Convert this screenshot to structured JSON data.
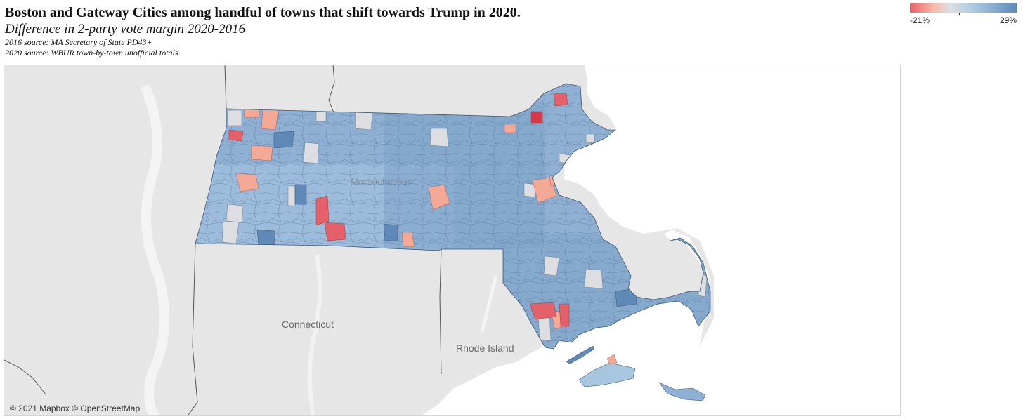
{
  "header": {
    "title": "Boston and Gateway Cities among handful of towns that shift towards Trump in 2020.",
    "subtitle": "Difference in 2-party vote margin 2020-2016",
    "source_2016": "2016 source: MA Secretary of State PD43+",
    "source_2020": "2020 source: WBUR town-by-town unofficial totals"
  },
  "legend": {
    "min_label": "-21%",
    "max_label": "29%",
    "min_value": -21,
    "max_value": 29,
    "colors": {
      "trump_shift": "#e4616a",
      "neutral": "#dcdfe2",
      "biden_shift": "#5f89b7"
    }
  },
  "map": {
    "labels": {
      "connecticut": "Connecticut",
      "rhode_island": "Rhode Island",
      "massachusetts": "Massachusetts"
    },
    "attribution": "© 2021 Mapbox © OpenStreetMap"
  }
}
